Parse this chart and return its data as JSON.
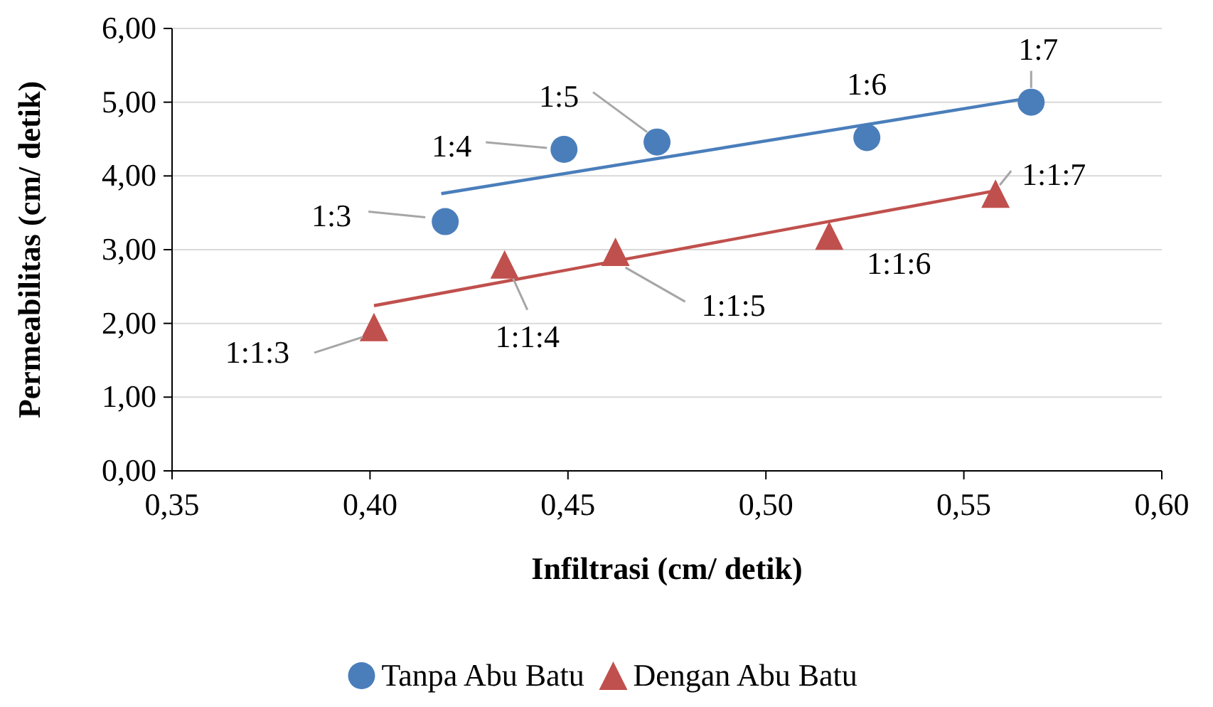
{
  "chart_data": {
    "type": "scatter",
    "xlabel": "Infiltrasi (cm/ detik)",
    "ylabel": "Permeabilitas (cm/ detik)",
    "xlim": [
      0.35,
      0.6
    ],
    "xticks": [
      {
        "value": 0.35,
        "label": "0,35"
      },
      {
        "value": 0.4,
        "label": "0,40"
      },
      {
        "value": 0.45,
        "label": "0,45"
      },
      {
        "value": 0.5,
        "label": "0,50"
      },
      {
        "value": 0.55,
        "label": "0,55"
      },
      {
        "value": 0.6,
        "label": "0,60"
      }
    ],
    "ylim": [
      0,
      6
    ],
    "yticks": [
      {
        "value": 0,
        "label": "0,00"
      },
      {
        "value": 1,
        "label": "1,00"
      },
      {
        "value": 2,
        "label": "2,00"
      },
      {
        "value": 3,
        "label": "3,00"
      },
      {
        "value": 4,
        "label": "4,00"
      },
      {
        "value": 5,
        "label": "5,00"
      },
      {
        "value": 6,
        "label": "6,00"
      }
    ],
    "grid": "y",
    "legend": "bottom",
    "series": [
      {
        "name": "Tanpa Abu Batu",
        "marker": "circle",
        "color": "#4a7ebb",
        "x": [
          0.419,
          0.449,
          0.4725,
          0.5255,
          0.567
        ],
        "values": [
          3.38,
          4.36,
          4.46,
          4.52,
          5.0
        ]
      },
      {
        "name": "Dengan Abu Batu",
        "marker": "triangle",
        "color": "#c0504d",
        "x": [
          0.401,
          0.434,
          0.462,
          0.516,
          0.558
        ],
        "values": [
          1.95,
          2.8,
          2.97,
          3.19,
          3.76
        ]
      },
      {
        "type": "line",
        "color": "#4a7ebb",
        "x": [
          0.418,
          0.567
        ],
        "values": [
          3.76,
          5.06
        ]
      },
      {
        "type": "line",
        "color": "#c0504d",
        "x": [
          0.401,
          0.558
        ],
        "values": [
          2.24,
          3.8
        ]
      }
    ],
    "annotations": [
      {
        "text": "1:3",
        "x": 0.419,
        "y": 3.38
      },
      {
        "text": "1:4",
        "x": 0.449,
        "y": 4.36
      },
      {
        "text": "1:5",
        "x": 0.4725,
        "y": 4.46
      },
      {
        "text": "1:6",
        "x": 0.5255,
        "y": 4.52
      },
      {
        "text": "1:7",
        "x": 0.567,
        "y": 5.0
      },
      {
        "text": "1:1:3",
        "x": 0.401,
        "y": 1.95
      },
      {
        "text": "1:1:4",
        "x": 0.434,
        "y": 2.8
      },
      {
        "text": "1:1:5",
        "x": 0.462,
        "y": 2.97
      },
      {
        "text": "1:1:6",
        "x": 0.516,
        "y": 3.19
      },
      {
        "text": "1:1:7",
        "x": 0.558,
        "y": 3.76
      }
    ]
  }
}
